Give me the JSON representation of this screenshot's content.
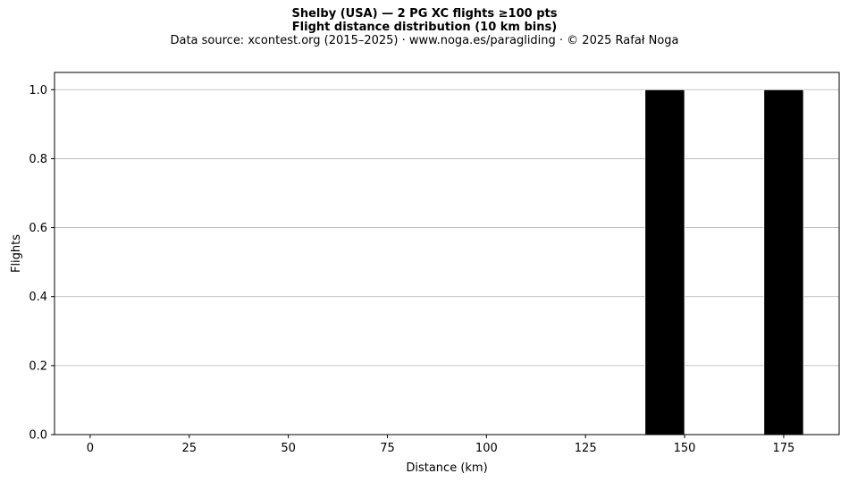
{
  "chart_data": {
    "type": "bar",
    "title": "Shelby (USA)  —  2 PG XC flights ≥100 pts",
    "title2": "Flight distance distribution (10 km bins)",
    "subtitle": "Data source: xcontest.org (2015–2025)  ·  www.noga.es/paragliding  ·  © 2025 Rafał Noga",
    "xlabel": "Distance (km)",
    "ylabel": "Flights",
    "xlim": [
      -9,
      189
    ],
    "ylim": [
      0,
      1.05
    ],
    "xticks": [
      0,
      25,
      50,
      75,
      100,
      125,
      150,
      175
    ],
    "yticks": [
      0.0,
      0.2,
      0.4,
      0.6,
      0.8,
      1.0
    ],
    "ytick_labels": [
      "0.0",
      "0.2",
      "0.4",
      "0.6",
      "0.8",
      "1.0"
    ],
    "grid": "y",
    "bar_color": "#000000",
    "bins": [
      {
        "x0": 140,
        "x1": 150,
        "value": 1
      },
      {
        "x0": 170,
        "x1": 180,
        "value": 1
      }
    ]
  }
}
